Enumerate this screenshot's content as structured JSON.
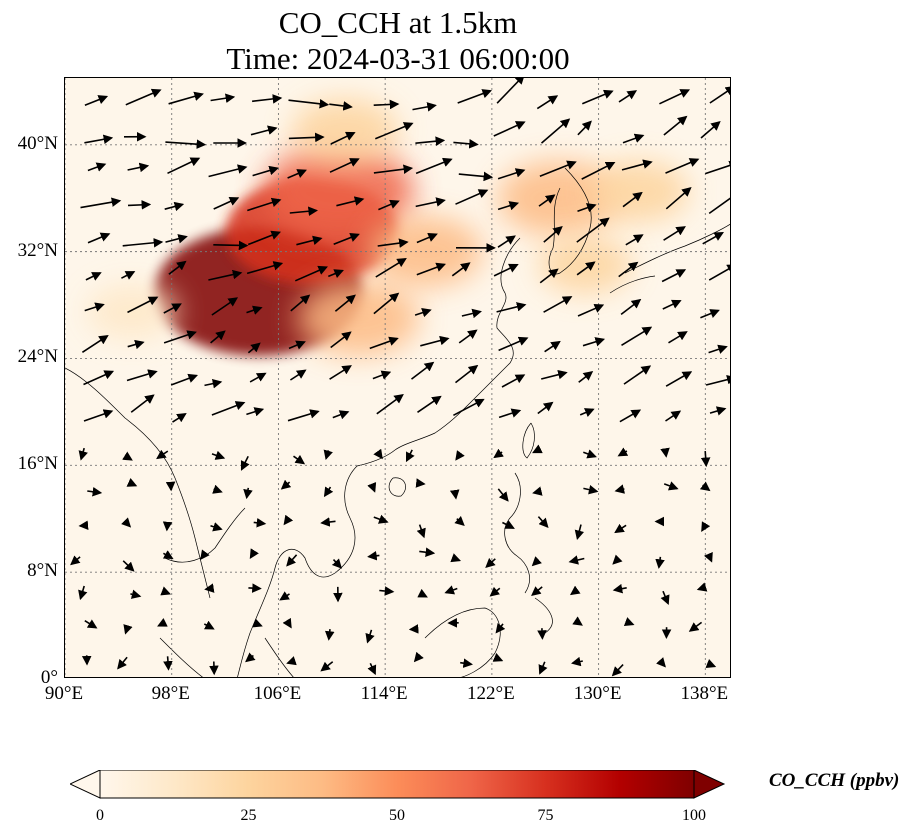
{
  "title": {
    "line1": "CO_CCH at 1.5km",
    "line2": "Time: 2024-03-31 06:00:00"
  },
  "map": {
    "variable": "CO_CCH",
    "height": "1.5km",
    "time": "2024-03-31 06:00:00",
    "extent": {
      "lon": [
        90,
        140
      ],
      "lat": [
        0,
        45
      ]
    },
    "lat_ticks": [
      {
        "value": 40,
        "label": "40°N"
      },
      {
        "value": 32,
        "label": "32°N"
      },
      {
        "value": 24,
        "label": "24°N"
      },
      {
        "value": 16,
        "label": "16°N"
      },
      {
        "value": 8,
        "label": "8°N"
      },
      {
        "value": 0,
        "label": "0°"
      }
    ],
    "lon_ticks": [
      {
        "value": 90,
        "label": "90°E"
      },
      {
        "value": 98,
        "label": "98°E"
      },
      {
        "value": 106,
        "label": "106°E"
      },
      {
        "value": 114,
        "label": "114°E"
      },
      {
        "value": 122,
        "label": "122°E"
      },
      {
        "value": 130,
        "label": "130°E"
      },
      {
        "value": 138,
        "label": "138°E"
      }
    ],
    "gridlines": true,
    "vectors": "wind arrows",
    "colormap": "OrRd"
  },
  "colorbar": {
    "label": "CO_CCH (ppbv)",
    "ticks": [
      "0",
      "25",
      "50",
      "75",
      "100"
    ],
    "min": 0,
    "max": 100,
    "extend": "both",
    "colors": [
      "#fff7ec",
      "#fee8c8",
      "#fdd49e",
      "#fdbb84",
      "#fc8d59",
      "#ef6548",
      "#d7301f",
      "#b30000",
      "#7f0000"
    ]
  },
  "plumes": [
    {
      "lon": 104.5,
      "lat": 29.0,
      "value": 100
    },
    {
      "lon": 108.5,
      "lat": 33.5,
      "value": 75
    },
    {
      "lon": 110.5,
      "lat": 36.5,
      "value": 60
    },
    {
      "lon": 117,
      "lat": 32.0,
      "value": 35
    },
    {
      "lon": 112,
      "lat": 27.0,
      "value": 40
    },
    {
      "lon": 127,
      "lat": 36.0,
      "value": 40
    },
    {
      "lon": 133,
      "lat": 36.5,
      "value": 25
    },
    {
      "lon": 129,
      "lat": 31.0,
      "value": 20
    },
    {
      "lon": 95,
      "lat": 27.5,
      "value": 18
    },
    {
      "lon": 111,
      "lat": 41.0,
      "value": 30
    }
  ]
}
